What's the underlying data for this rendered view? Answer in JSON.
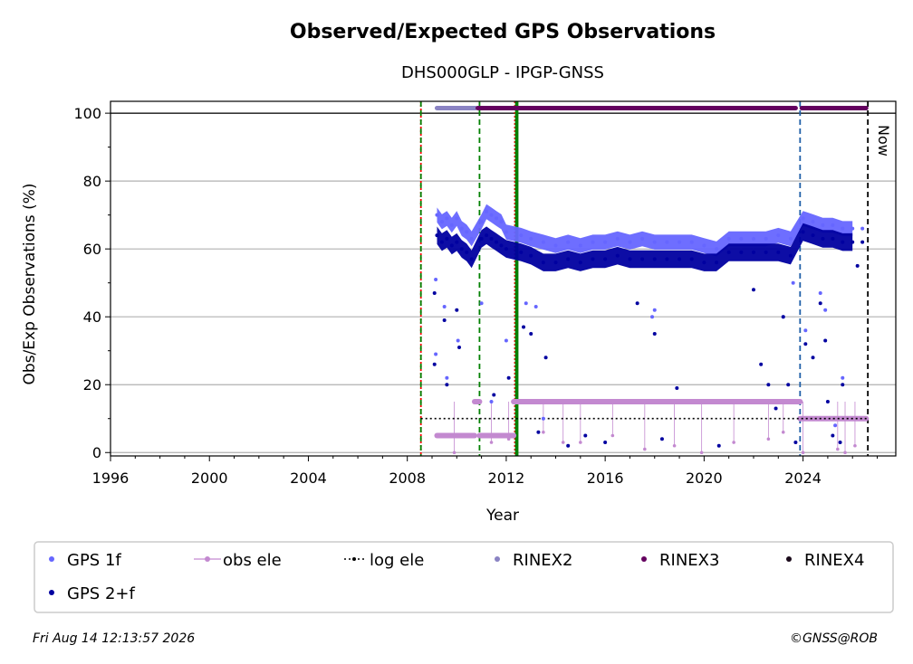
{
  "chart_data": {
    "type": "scatter",
    "title": "Observed/Expected GPS Observations",
    "subtitle": "DHS000GLP - IPGP-GNSS",
    "xlabel": "Year",
    "ylabel": "Obs/Exp Observations (%)",
    "xlim": [
      1996,
      2027.75
    ],
    "ylim": [
      -1,
      103.5
    ],
    "x_ticks": [
      1996,
      2000,
      2004,
      2008,
      2012,
      2016,
      2020,
      2024
    ],
    "y_ticks": [
      0,
      20,
      40,
      60,
      80,
      100
    ],
    "grid": "horizontal",
    "now_label": "Now",
    "now_x": 2026.62,
    "vlines": [
      {
        "x": 2008.55,
        "color": "#ff0000",
        "style": "dotted"
      },
      {
        "x": 2008.55,
        "color": "#008000",
        "style": "dashed"
      },
      {
        "x": 2010.92,
        "color": "#008000",
        "style": "dashed"
      },
      {
        "x": 2012.35,
        "color": "#ff0000",
        "style": "dotted"
      },
      {
        "x": 2012.4,
        "color": "#008000",
        "style": "solid"
      },
      {
        "x": 2012.45,
        "color": "#008000",
        "style": "solid"
      },
      {
        "x": 2023.88,
        "color": "#1f5fa8",
        "style": "dashed"
      }
    ],
    "series": [
      {
        "name": "GPS 1f",
        "color": "#6666ff",
        "points": [
          [
            2009.2,
            70
          ],
          [
            2009.4,
            68
          ],
          [
            2009.6,
            69
          ],
          [
            2009.8,
            67
          ],
          [
            2010.0,
            69
          ],
          [
            2010.2,
            66
          ],
          [
            2010.4,
            65
          ],
          [
            2010.6,
            63
          ],
          [
            2011.0,
            68
          ],
          [
            2011.2,
            71
          ],
          [
            2011.4,
            70
          ],
          [
            2011.6,
            69
          ],
          [
            2011.8,
            68
          ],
          [
            2012.0,
            65
          ],
          [
            2012.6,
            64
          ],
          [
            2013.0,
            63
          ],
          [
            2013.5,
            62
          ],
          [
            2014.0,
            61
          ],
          [
            2014.5,
            62
          ],
          [
            2015.0,
            61
          ],
          [
            2015.5,
            62
          ],
          [
            2016.0,
            62
          ],
          [
            2016.5,
            63
          ],
          [
            2017.0,
            62
          ],
          [
            2017.5,
            63
          ],
          [
            2018.0,
            62
          ],
          [
            2018.5,
            62
          ],
          [
            2019.0,
            62
          ],
          [
            2019.5,
            62
          ],
          [
            2020.0,
            61
          ],
          [
            2020.5,
            60
          ],
          [
            2021.0,
            63
          ],
          [
            2021.5,
            63
          ],
          [
            2022.0,
            63
          ],
          [
            2022.5,
            63
          ],
          [
            2023.0,
            64
          ],
          [
            2023.5,
            63
          ],
          [
            2024.0,
            69
          ],
          [
            2024.4,
            68
          ],
          [
            2024.8,
            67
          ],
          [
            2025.2,
            67
          ],
          [
            2025.6,
            66
          ],
          [
            2026.0,
            66
          ],
          [
            2026.4,
            66
          ],
          [
            2009.15,
            51
          ],
          [
            2009.5,
            43
          ],
          [
            2009.6,
            22
          ],
          [
            2009.15,
            29
          ],
          [
            2010.05,
            33
          ],
          [
            2011.0,
            44
          ],
          [
            2011.4,
            15
          ],
          [
            2012.0,
            33
          ],
          [
            2012.8,
            44
          ],
          [
            2013.2,
            43
          ],
          [
            2013.5,
            10
          ],
          [
            2017.9,
            40
          ],
          [
            2018.0,
            42
          ],
          [
            2023.2,
            40
          ],
          [
            2023.6,
            50
          ],
          [
            2024.1,
            36
          ],
          [
            2024.7,
            47
          ],
          [
            2024.9,
            42
          ],
          [
            2025.3,
            8
          ],
          [
            2025.6,
            22
          ]
        ]
      },
      {
        "name": "GPS 2+f",
        "color": "#0000a0",
        "points": [
          [
            2009.2,
            64
          ],
          [
            2009.4,
            62
          ],
          [
            2009.6,
            63
          ],
          [
            2009.8,
            61
          ],
          [
            2010.0,
            62
          ],
          [
            2010.2,
            60
          ],
          [
            2010.4,
            59
          ],
          [
            2010.6,
            57
          ],
          [
            2011.0,
            63
          ],
          [
            2011.2,
            64
          ],
          [
            2011.4,
            63
          ],
          [
            2011.6,
            62
          ],
          [
            2011.8,
            61
          ],
          [
            2012.0,
            60
          ],
          [
            2012.6,
            59
          ],
          [
            2013.0,
            58
          ],
          [
            2013.5,
            56
          ],
          [
            2014.0,
            56
          ],
          [
            2014.5,
            57
          ],
          [
            2015.0,
            56
          ],
          [
            2015.5,
            57
          ],
          [
            2016.0,
            57
          ],
          [
            2016.5,
            58
          ],
          [
            2017.0,
            57
          ],
          [
            2017.5,
            57
          ],
          [
            2018.0,
            57
          ],
          [
            2018.5,
            57
          ],
          [
            2019.0,
            57
          ],
          [
            2019.5,
            57
          ],
          [
            2020.0,
            56
          ],
          [
            2020.5,
            56
          ],
          [
            2021.0,
            59
          ],
          [
            2021.5,
            59
          ],
          [
            2022.0,
            59
          ],
          [
            2022.5,
            59
          ],
          [
            2023.0,
            59
          ],
          [
            2023.5,
            58
          ],
          [
            2024.0,
            65
          ],
          [
            2024.4,
            64
          ],
          [
            2024.8,
            63
          ],
          [
            2025.2,
            63
          ],
          [
            2025.6,
            62
          ],
          [
            2026.0,
            62
          ],
          [
            2026.4,
            62
          ],
          [
            2009.1,
            47
          ],
          [
            2009.1,
            26
          ],
          [
            2009.5,
            39
          ],
          [
            2009.6,
            20
          ],
          [
            2010.0,
            42
          ],
          [
            2010.1,
            31
          ],
          [
            2011.5,
            17
          ],
          [
            2012.1,
            22
          ],
          [
            2012.7,
            37
          ],
          [
            2013.0,
            35
          ],
          [
            2013.3,
            6
          ],
          [
            2013.6,
            28
          ],
          [
            2014.5,
            2
          ],
          [
            2015.2,
            5
          ],
          [
            2016.0,
            3
          ],
          [
            2017.3,
            44
          ],
          [
            2018.0,
            35
          ],
          [
            2018.3,
            4
          ],
          [
            2018.9,
            19
          ],
          [
            2020.6,
            2
          ],
          [
            2022.0,
            48
          ],
          [
            2022.3,
            26
          ],
          [
            2022.6,
            20
          ],
          [
            2022.9,
            13
          ],
          [
            2023.2,
            40
          ],
          [
            2023.4,
            20
          ],
          [
            2023.7,
            3
          ],
          [
            2024.1,
            32
          ],
          [
            2024.4,
            28
          ],
          [
            2024.7,
            44
          ],
          [
            2024.9,
            33
          ],
          [
            2025.0,
            15
          ],
          [
            2025.2,
            5
          ],
          [
            2025.5,
            3
          ],
          [
            2025.6,
            20
          ],
          [
            2026.2,
            55
          ]
        ]
      },
      {
        "name": "obs ele",
        "color": "#c389d0",
        "segments": [
          [
            2009.2,
            2010.72,
            5
          ],
          [
            2010.72,
            2010.92,
            15
          ],
          [
            2010.92,
            2012.3,
            5
          ],
          [
            2012.3,
            2023.88,
            15
          ],
          [
            2023.88,
            2026.55,
            10
          ]
        ],
        "drops": [
          [
            2009.9,
            0
          ],
          [
            2011.4,
            3
          ],
          [
            2012.1,
            4
          ],
          [
            2013.5,
            6
          ],
          [
            2014.3,
            3
          ],
          [
            2015.0,
            3
          ],
          [
            2016.3,
            5
          ],
          [
            2017.6,
            1
          ],
          [
            2018.8,
            2
          ],
          [
            2019.9,
            0
          ],
          [
            2021.2,
            3
          ],
          [
            2022.6,
            4
          ],
          [
            2023.2,
            6
          ],
          [
            2024.0,
            0
          ],
          [
            2025.4,
            1
          ],
          [
            2025.7,
            0
          ],
          [
            2026.1,
            2
          ]
        ]
      },
      {
        "name": "log ele",
        "color": "#000000",
        "segments": [
          [
            2008.55,
            2026.62,
            10
          ]
        ]
      },
      {
        "name": "RINEX2",
        "color": "#8a83c3",
        "segments": [
          [
            2009.2,
            2010.75,
            101.5
          ]
        ]
      },
      {
        "name": "RINEX3",
        "color": "#64005f",
        "segments": [
          [
            2010.85,
            2023.7,
            101.5
          ],
          [
            2023.95,
            2026.55,
            101.5
          ]
        ]
      },
      {
        "name": "RINEX4",
        "color": "#1a0a1a",
        "segments": []
      }
    ]
  },
  "legend": [
    {
      "label": "GPS 1f",
      "marker": "dot",
      "color": "#6666ff"
    },
    {
      "label": "obs ele",
      "marker": "line-dot",
      "color": "#c389d0"
    },
    {
      "label": "log ele",
      "marker": "dotted-line",
      "color": "#000000"
    },
    {
      "label": "RINEX2",
      "marker": "dot",
      "color": "#8a83c3"
    },
    {
      "label": "RINEX3",
      "marker": "dot",
      "color": "#64005f"
    },
    {
      "label": "RINEX4",
      "marker": "dot",
      "color": "#1a0a1a"
    },
    {
      "label": "GPS 2+f",
      "marker": "dot",
      "color": "#0000a0"
    }
  ],
  "footer": {
    "timestamp": "Fri Aug 14 12:13:57 2026",
    "copyright": "©GNSS@ROB"
  }
}
